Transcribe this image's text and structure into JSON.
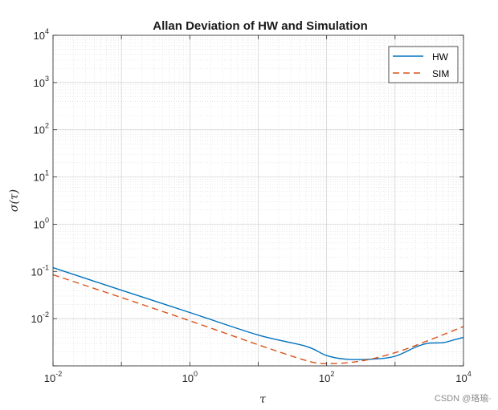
{
  "colors": {
    "hw": "#0072bd",
    "sim": "#d95319",
    "grid": "#dcdcdc",
    "axis": "#262626"
  },
  "chart_data": {
    "type": "line",
    "title": "Allan Deviation of HW and Simulation",
    "xlabel": "τ",
    "ylabel": "σ(τ)",
    "xscale": "log",
    "yscale": "log",
    "xlim": [
      0.01,
      10000
    ],
    "ylim": [
      0.001,
      10000
    ],
    "grid": "on (major and minor)",
    "legend_location": "top-right",
    "x_ticks": [
      {
        "base": "10",
        "exp": "-2"
      },
      {
        "base": "10",
        "exp": "0"
      },
      {
        "base": "10",
        "exp": "2"
      },
      {
        "base": "10",
        "exp": "4"
      }
    ],
    "y_ticks": [
      {
        "base": "10",
        "exp": "-2"
      },
      {
        "base": "10",
        "exp": "-1"
      },
      {
        "base": "10",
        "exp": "0"
      },
      {
        "base": "10",
        "exp": "1"
      },
      {
        "base": "10",
        "exp": "2"
      },
      {
        "base": "10",
        "exp": "3"
      },
      {
        "base": "10",
        "exp": "4"
      }
    ],
    "series": [
      {
        "name": "HW",
        "style": "solid",
        "x": [
          0.01,
          0.1,
          1,
          10,
          50,
          100,
          200,
          500,
          1000,
          2000,
          3000,
          5000,
          7000,
          10000
        ],
        "y": [
          0.12,
          0.04,
          0.0135,
          0.0045,
          0.0026,
          0.00165,
          0.00138,
          0.0014,
          0.0016,
          0.0025,
          0.003,
          0.0031,
          0.0035,
          0.004
        ]
      },
      {
        "name": "SIM",
        "style": "dashed",
        "x": [
          0.01,
          0.1,
          1,
          10,
          50,
          100,
          300,
          1000,
          3000,
          10000
        ],
        "y": [
          0.085,
          0.028,
          0.009,
          0.0028,
          0.0013,
          0.00112,
          0.00125,
          0.0019,
          0.0034,
          0.0068
        ]
      }
    ]
  },
  "watermark": "CSDN @珞瑜·"
}
